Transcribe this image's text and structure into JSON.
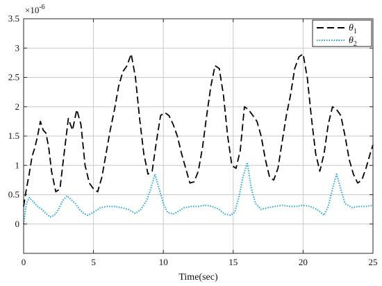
{
  "chart_data": {
    "type": "line",
    "xlabel": "Time(sec)",
    "ylabel": "",
    "y_exponent_label": "×10",
    "y_exponent_power": "-6",
    "xlim": [
      0,
      25
    ],
    "ylim": [
      -0.5,
      3.5
    ],
    "x_ticks": [
      0,
      5,
      10,
      15,
      20,
      25
    ],
    "x_tick_labels": [
      "0",
      "5",
      "10",
      "15",
      "20",
      "25"
    ],
    "y_ticks": [
      0,
      0.5,
      1,
      1.5,
      2,
      2.5,
      3,
      3.5
    ],
    "y_tick_labels": [
      "0",
      "0.5",
      "1",
      "1.5",
      "2",
      "2.5",
      "3",
      "3.5"
    ],
    "y_scale_note": "values in units of 1e-6",
    "grid": true,
    "legend_position": "top-right",
    "series": [
      {
        "name": "θ",
        "name_subscript": "1",
        "color": "#000000",
        "style": "dashed",
        "x": [
          0,
          0.2,
          0.4,
          0.6,
          0.8,
          1.0,
          1.2,
          1.4,
          1.6,
          1.8,
          2.0,
          2.3,
          2.6,
          2.9,
          3.2,
          3.5,
          3.8,
          4.1,
          4.4,
          4.7,
          5.0,
          5.3,
          5.6,
          5.9,
          6.2,
          6.5,
          6.8,
          7.1,
          7.4,
          7.7,
          8.0,
          8.3,
          8.6,
          8.9,
          9.2,
          9.5,
          9.8,
          10.1,
          10.4,
          10.7,
          11.0,
          11.3,
          11.6,
          11.9,
          12.2,
          12.5,
          12.8,
          13.1,
          13.4,
          13.7,
          14.0,
          14.3,
          14.6,
          14.9,
          15.2,
          15.5,
          15.8,
          16.1,
          16.4,
          16.7,
          17.0,
          17.3,
          17.6,
          17.9,
          18.2,
          18.5,
          18.8,
          19.1,
          19.4,
          19.7,
          20.0,
          20.3,
          20.6,
          20.9,
          21.2,
          21.5,
          21.8,
          22.1,
          22.4,
          22.7,
          23.0,
          23.3,
          23.6,
          23.9,
          24.2,
          24.5,
          24.8,
          25.0
        ],
        "y": [
          0.3,
          0.6,
          0.85,
          1.15,
          1.3,
          1.5,
          1.75,
          1.6,
          1.55,
          1.3,
          0.9,
          0.55,
          0.6,
          1.2,
          1.8,
          1.6,
          1.95,
          1.7,
          1.0,
          0.7,
          0.6,
          0.55,
          0.8,
          1.2,
          1.6,
          1.95,
          2.35,
          2.6,
          2.7,
          2.9,
          2.5,
          1.8,
          1.2,
          0.85,
          0.9,
          1.4,
          1.85,
          1.9,
          1.85,
          1.7,
          1.5,
          1.2,
          0.95,
          0.7,
          0.72,
          0.9,
          1.3,
          1.85,
          2.35,
          2.7,
          2.65,
          2.2,
          1.5,
          1.0,
          0.95,
          1.25,
          2.0,
          1.95,
          1.85,
          1.75,
          1.5,
          1.1,
          0.8,
          0.75,
          0.95,
          1.4,
          1.85,
          2.2,
          2.65,
          2.85,
          2.9,
          2.5,
          1.8,
          1.2,
          0.9,
          1.2,
          1.7,
          2.0,
          1.95,
          1.85,
          1.5,
          1.1,
          0.85,
          0.7,
          0.75,
          0.95,
          1.2,
          1.35
        ]
      },
      {
        "name": "θ",
        "name_subscript": "2",
        "color": "#1aa6e0",
        "style": "dotted",
        "x": [
          0,
          0.2,
          0.4,
          0.7,
          1.0,
          1.3,
          1.6,
          1.9,
          2.2,
          2.5,
          2.8,
          3.1,
          3.4,
          3.7,
          4.0,
          4.3,
          4.6,
          5.0,
          5.5,
          6.0,
          6.5,
          7.0,
          7.5,
          8.0,
          8.4,
          8.8,
          9.1,
          9.4,
          9.7,
          10.0,
          10.3,
          10.7,
          11.1,
          11.5,
          12.0,
          12.5,
          13.0,
          13.5,
          14.0,
          14.4,
          14.8,
          15.1,
          15.4,
          15.7,
          16.0,
          16.3,
          16.6,
          17.0,
          17.5,
          18.0,
          18.5,
          19.0,
          19.5,
          20.0,
          20.5,
          21.0,
          21.5,
          21.8,
          22.1,
          22.4,
          22.7,
          23.0,
          23.5,
          24.0,
          24.5,
          25.0
        ],
        "y": [
          0.0,
          0.35,
          0.45,
          0.38,
          0.3,
          0.25,
          0.18,
          0.12,
          0.15,
          0.25,
          0.4,
          0.48,
          0.42,
          0.35,
          0.25,
          0.18,
          0.15,
          0.2,
          0.28,
          0.3,
          0.3,
          0.28,
          0.25,
          0.18,
          0.25,
          0.4,
          0.6,
          0.85,
          0.6,
          0.35,
          0.2,
          0.17,
          0.22,
          0.28,
          0.3,
          0.3,
          0.32,
          0.3,
          0.25,
          0.17,
          0.15,
          0.2,
          0.45,
          0.8,
          1.05,
          0.6,
          0.35,
          0.25,
          0.28,
          0.3,
          0.32,
          0.3,
          0.3,
          0.32,
          0.3,
          0.25,
          0.15,
          0.3,
          0.6,
          0.85,
          0.6,
          0.35,
          0.28,
          0.3,
          0.3,
          0.32
        ]
      }
    ]
  }
}
